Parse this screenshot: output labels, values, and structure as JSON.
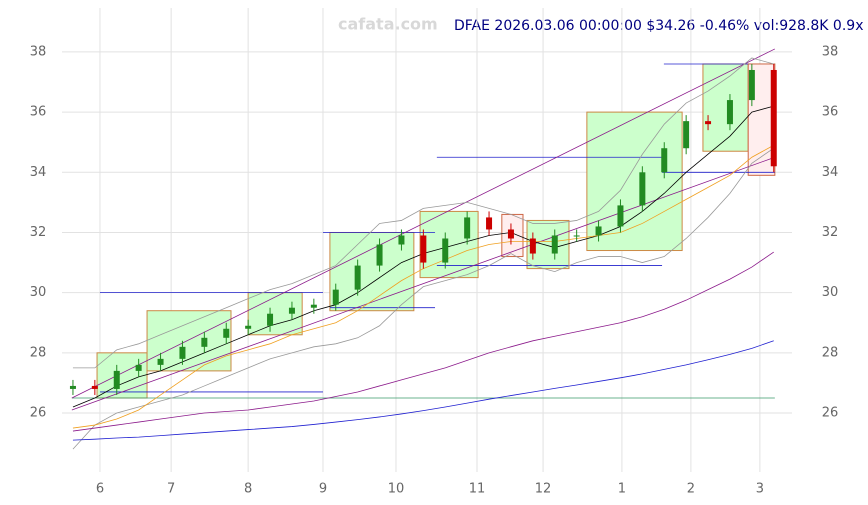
{
  "chart_data": {
    "type": "candlestick",
    "watermark": "cafata.com",
    "title": "DFAE 2026.03.06 00:00:00 $34.26 -0.46% vol:928.8K 0.9x",
    "xlim": [
      0,
      200
    ],
    "ylim": [
      24.04,
      39.46
    ],
    "grid": true,
    "xticks": [
      {
        "value": 10.4,
        "label": "6"
      },
      {
        "value": 29.9,
        "label": "7"
      },
      {
        "value": 51,
        "label": "8"
      },
      {
        "value": 71.5,
        "label": "9"
      },
      {
        "value": 91.5,
        "label": "10"
      },
      {
        "value": 113.7,
        "label": "11"
      },
      {
        "value": 131.8,
        "label": "12"
      },
      {
        "value": 153.4,
        "label": "1"
      },
      {
        "value": 172.3,
        "label": "2"
      },
      {
        "value": 191.2,
        "label": "3"
      }
    ],
    "yticks": [
      26,
      28,
      30,
      32,
      34,
      36,
      38
    ],
    "up_color": "#228b22",
    "down_color": "#cc0000",
    "x": [
      3,
      9,
      15,
      21,
      27,
      33,
      39,
      45,
      51,
      57,
      63,
      69,
      75,
      81,
      87,
      93,
      99,
      105,
      111,
      117,
      123,
      129,
      135,
      141,
      147,
      153,
      159,
      165,
      171,
      177,
      183,
      189,
      195
    ],
    "open": [
      26.8,
      26.9,
      26.8,
      27.4,
      27.6,
      27.8,
      28.2,
      28.5,
      28.8,
      28.9,
      29.3,
      29.5,
      29.6,
      30.1,
      30.9,
      31.6,
      31.9,
      31.0,
      31.8,
      32.5,
      32.1,
      31.8,
      31.3,
      31.9,
      31.9,
      32.2,
      32.9,
      34.0,
      34.8,
      35.7,
      35.6,
      36.4,
      37.4
    ],
    "high": [
      27.1,
      27.1,
      27.6,
      27.8,
      28.0,
      28.4,
      28.7,
      29.0,
      29.1,
      29.5,
      29.7,
      29.8,
      30.3,
      31.1,
      31.8,
      32.1,
      32.1,
      32.0,
      32.7,
      32.7,
      32.3,
      32.0,
      32.1,
      32.1,
      32.4,
      33.1,
      34.2,
      35.0,
      35.9,
      35.9,
      36.6,
      37.6,
      37.6
    ],
    "low": [
      26.6,
      26.6,
      26.6,
      27.2,
      27.4,
      27.6,
      28.0,
      28.3,
      28.6,
      28.7,
      29.1,
      29.3,
      29.4,
      29.9,
      30.7,
      31.4,
      30.8,
      30.8,
      31.6,
      31.9,
      31.6,
      31.1,
      31.1,
      31.7,
      31.7,
      32.0,
      32.7,
      33.8,
      34.6,
      35.4,
      35.4,
      36.2,
      34.0
    ],
    "close": [
      26.9,
      26.8,
      27.4,
      27.6,
      27.8,
      28.2,
      28.5,
      28.8,
      28.9,
      29.3,
      29.5,
      29.6,
      30.1,
      30.9,
      31.6,
      31.9,
      31.0,
      31.8,
      32.5,
      32.1,
      31.8,
      31.3,
      31.9,
      31.9,
      32.2,
      32.9,
      34.0,
      34.8,
      35.7,
      35.6,
      36.4,
      37.4,
      34.2
    ],
    "lines": [
      {
        "color": "#999999",
        "values": [
          27.5,
          27.5,
          28.1,
          28.3,
          28.6,
          28.9,
          29.2,
          29.5,
          29.8,
          30.1,
          30.3,
          30.6,
          30.9,
          31.6,
          32.3,
          32.4,
          32.8,
          32.9,
          33.0,
          32.8,
          32.6,
          32.3,
          32.3,
          32.4,
          32.7,
          33.4,
          34.6,
          35.6,
          36.3,
          36.7,
          37.2,
          37.8,
          37.6
        ]
      },
      {
        "color": "#999999",
        "values": [
          24.8,
          25.6,
          26.0,
          26.2,
          26.4,
          26.6,
          26.9,
          27.2,
          27.5,
          27.8,
          28.0,
          28.2,
          28.3,
          28.5,
          28.9,
          29.6,
          30.2,
          30.4,
          30.6,
          30.9,
          31.3,
          30.9,
          30.7,
          31.0,
          31.2,
          31.2,
          31.0,
          31.2,
          31.8,
          32.5,
          33.3,
          34.3,
          34.8
        ]
      },
      {
        "color": "#000000",
        "values": [
          26.2,
          26.5,
          26.9,
          27.2,
          27.4,
          27.7,
          28.0,
          28.3,
          28.6,
          28.9,
          29.1,
          29.4,
          29.6,
          30.0,
          30.5,
          31.0,
          31.3,
          31.5,
          31.7,
          31.9,
          32.0,
          31.7,
          31.5,
          31.7,
          31.9,
          32.2,
          32.7,
          33.3,
          34.0,
          34.6,
          35.2,
          36.0,
          36.2
        ]
      },
      {
        "color": "#f0a020",
        "values": [
          25.5,
          25.6,
          25.8,
          26.1,
          26.6,
          27.1,
          27.6,
          27.9,
          28.1,
          28.3,
          28.6,
          28.8,
          29.0,
          29.4,
          29.9,
          30.4,
          30.8,
          31.1,
          31.4,
          31.6,
          31.7,
          31.7,
          31.7,
          31.8,
          31.9,
          32.0,
          32.3,
          32.7,
          33.1,
          33.5,
          33.9,
          34.5,
          34.9
        ]
      },
      {
        "color": "#8b1a8b",
        "values": [
          25.4,
          25.5,
          25.6,
          25.7,
          25.8,
          25.9,
          26.0,
          26.05,
          26.1,
          26.2,
          26.3,
          26.4,
          26.55,
          26.7,
          26.9,
          27.1,
          27.3,
          27.5,
          27.75,
          28.0,
          28.2,
          28.4,
          28.55,
          28.7,
          28.85,
          29.0,
          29.2,
          29.45,
          29.75,
          30.1,
          30.45,
          30.85,
          31.35
        ]
      },
      {
        "color": "#1f1fd0",
        "values": [
          25.1,
          25.13,
          25.17,
          25.2,
          25.25,
          25.3,
          25.35,
          25.4,
          25.45,
          25.5,
          25.55,
          25.62,
          25.7,
          25.78,
          25.87,
          25.97,
          26.08,
          26.2,
          26.33,
          26.46,
          26.58,
          26.7,
          26.82,
          26.93,
          27.05,
          27.17,
          27.3,
          27.45,
          27.6,
          27.77,
          27.95,
          28.15,
          28.4
        ]
      }
    ],
    "boxes": [
      {
        "x": [
          9.6,
          23.3
        ],
        "y": [
          26.5,
          28.0
        ],
        "color": "#ccffcc",
        "border": "#cc8844"
      },
      {
        "x": [
          23.3,
          46.3
        ],
        "y": [
          27.4,
          29.4
        ],
        "color": "#ccffcc",
        "border": "#cc8844"
      },
      {
        "x": [
          51,
          65.8
        ],
        "y": [
          28.6,
          30.0
        ],
        "color": "#ccffcc",
        "border": "#cc8844"
      },
      {
        "x": [
          73.4,
          96.4
        ],
        "y": [
          29.4,
          32.0
        ],
        "color": "#ccffcc",
        "border": "#cc8844"
      },
      {
        "x": [
          98.1,
          114
        ],
        "y": [
          30.5,
          32.7
        ],
        "color": "#ccffcc",
        "border": "#cc8844"
      },
      {
        "x": [
          120.5,
          126.3
        ],
        "y": [
          31.2,
          32.6
        ],
        "color": "#ffeeee",
        "border": "#cc6644"
      },
      {
        "x": [
          127.4,
          138.9
        ],
        "y": [
          30.8,
          32.4
        ],
        "color": "#ccffcc",
        "border": "#cc8844"
      },
      {
        "x": [
          143.8,
          169.9
        ],
        "y": [
          31.4,
          36.0
        ],
        "color": "#ccffcc",
        "border": "#cc8844"
      },
      {
        "x": [
          175.6,
          188
        ],
        "y": [
          34.7,
          37.6
        ],
        "color": "#ccffcc",
        "border": "#cc8844"
      },
      {
        "x": [
          188,
          195.3
        ],
        "y": [
          33.9,
          37.6
        ],
        "color": "#ffeeee",
        "border": "#cc6644"
      }
    ],
    "segments": [
      {
        "x": [
          10.4,
          71.5
        ],
        "y": [
          30.0,
          30.0
        ],
        "color": "#2020cc"
      },
      {
        "x": [
          10.4,
          71.5
        ],
        "y": [
          26.7,
          26.7
        ],
        "color": "#2020cc"
      },
      {
        "x": [
          71.5,
          102.2
        ],
        "y": [
          32.0,
          32.0
        ],
        "color": "#2020cc"
      },
      {
        "x": [
          73.4,
          102.2
        ],
        "y": [
          29.5,
          29.5
        ],
        "color": "#2020cc"
      },
      {
        "x": [
          102.7,
          164.4
        ],
        "y": [
          34.5,
          34.5
        ],
        "color": "#2020cc"
      },
      {
        "x": [
          102.7,
          164.4
        ],
        "y": [
          30.9,
          30.9
        ],
        "color": "#2020cc"
      },
      {
        "x": [
          164.9,
          188
        ],
        "y": [
          37.6,
          37.6
        ],
        "color": "#2020cc"
      },
      {
        "x": [
          164.4,
          195.3
        ],
        "y": [
          34.0,
          34.0
        ],
        "color": "#2020cc"
      },
      {
        "x": [
          2.7,
          195.3
        ],
        "y": [
          26.5,
          26.5
        ],
        "color": "#3a9a6a"
      },
      {
        "x": [
          2.7,
          195.3
        ],
        "y": [
          26.5,
          38.1
        ],
        "color": "#8b1a8b"
      },
      {
        "x": [
          2.7,
          195.3
        ],
        "y": [
          26.1,
          34.5
        ],
        "color": "#8b1a8b"
      }
    ]
  }
}
